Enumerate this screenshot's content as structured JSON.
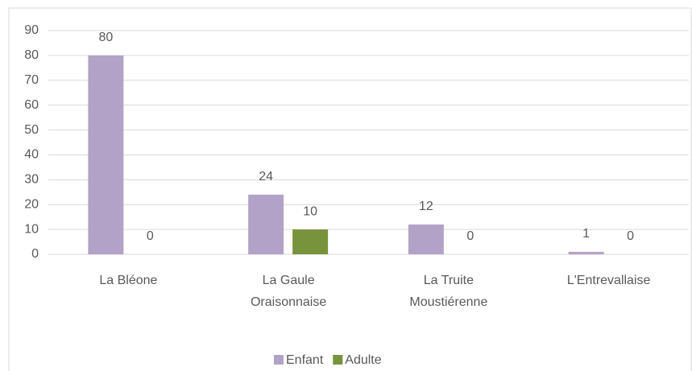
{
  "chart_data": {
    "type": "bar",
    "categories": [
      [
        "La Bléone"
      ],
      [
        "La Gaule",
        "Oraisonnaise"
      ],
      [
        "La Truite",
        "Moustiérenne"
      ],
      [
        "L'Entrevallaise"
      ]
    ],
    "series": [
      {
        "name": "Enfant",
        "color": "#b3a2c7",
        "values": [
          80,
          24,
          12,
          1
        ]
      },
      {
        "name": "Adulte",
        "color": "#77933c",
        "values": [
          0,
          10,
          0,
          0
        ]
      }
    ],
    "ylim": [
      0,
      90
    ],
    "yticks": [
      0,
      10,
      20,
      30,
      40,
      50,
      60,
      70,
      80,
      90
    ],
    "grid": true,
    "legend": "bottom"
  }
}
